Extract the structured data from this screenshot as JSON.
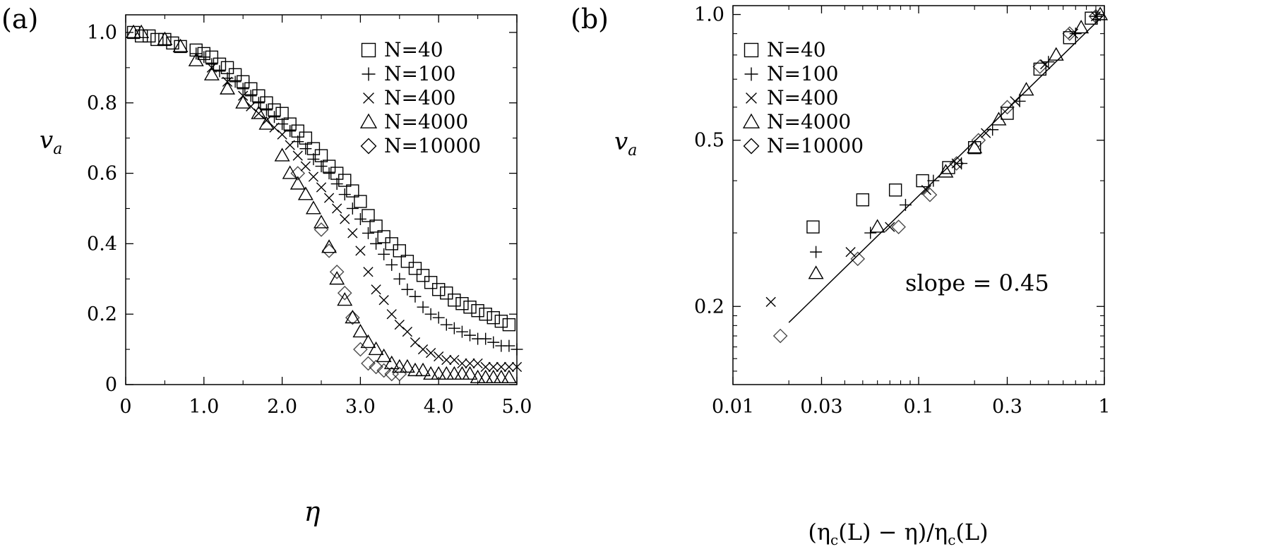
{
  "chart_data": [
    {
      "panel_label": "(a)",
      "type": "scatter",
      "xlabel": "η",
      "ylabel_main": "v",
      "ylabel_sub": "a",
      "xscale": "linear",
      "yscale": "linear",
      "xlim": [
        0,
        5.0
      ],
      "ylim": [
        0,
        1.05
      ],
      "x_ticks": [
        0,
        1.0,
        2.0,
        3.0,
        4.0,
        5.0
      ],
      "x_tick_labels": [
        "0",
        "1.0",
        "2.0",
        "3.0",
        "4.0",
        "5.0"
      ],
      "y_ticks": [
        0,
        0.2,
        0.4,
        0.6,
        0.8,
        1.0
      ],
      "y_tick_labels": [
        "0",
        "0.2",
        "0.4",
        "0.6",
        "0.8",
        "1.0"
      ],
      "grid": false,
      "legend_position": "top-right",
      "series": [
        {
          "name": "N=40",
          "marker": "square",
          "x": [
            0.1,
            0.2,
            0.3,
            0.4,
            0.5,
            0.6,
            0.7,
            0.9,
            1.0,
            1.1,
            1.2,
            1.3,
            1.4,
            1.5,
            1.6,
            1.7,
            1.8,
            1.9,
            2.0,
            2.1,
            2.2,
            2.3,
            2.4,
            2.5,
            2.6,
            2.7,
            2.8,
            2.9,
            3.0,
            3.1,
            3.2,
            3.3,
            3.4,
            3.5,
            3.6,
            3.7,
            3.8,
            3.9,
            4.0,
            4.1,
            4.2,
            4.3,
            4.4,
            4.5,
            4.6,
            4.7,
            4.8,
            4.9
          ],
          "y": [
            1.0,
            0.99,
            0.99,
            0.98,
            0.98,
            0.97,
            0.96,
            0.95,
            0.94,
            0.93,
            0.91,
            0.9,
            0.88,
            0.86,
            0.84,
            0.82,
            0.8,
            0.78,
            0.77,
            0.74,
            0.72,
            0.7,
            0.67,
            0.65,
            0.62,
            0.6,
            0.58,
            0.55,
            0.52,
            0.48,
            0.45,
            0.42,
            0.4,
            0.38,
            0.35,
            0.33,
            0.31,
            0.29,
            0.27,
            0.26,
            0.24,
            0.23,
            0.22,
            0.21,
            0.2,
            0.19,
            0.18,
            0.17
          ]
        },
        {
          "name": "N=100",
          "marker": "plus",
          "x": [
            0.9,
            1.0,
            1.1,
            1.2,
            1.3,
            1.4,
            1.5,
            1.6,
            1.7,
            1.8,
            1.9,
            2.0,
            2.1,
            2.2,
            2.3,
            2.4,
            2.5,
            2.6,
            2.7,
            2.8,
            2.9,
            3.0,
            3.1,
            3.2,
            3.3,
            3.4,
            3.5,
            3.6,
            3.7,
            3.8,
            3.9,
            4.0,
            4.1,
            4.2,
            4.3,
            4.4,
            4.5,
            4.6,
            4.7,
            4.8,
            4.9,
            5.0
          ],
          "y": [
            0.94,
            0.93,
            0.91,
            0.89,
            0.87,
            0.86,
            0.84,
            0.82,
            0.8,
            0.78,
            0.76,
            0.74,
            0.72,
            0.69,
            0.67,
            0.64,
            0.62,
            0.6,
            0.57,
            0.54,
            0.5,
            0.47,
            0.43,
            0.4,
            0.37,
            0.34,
            0.3,
            0.27,
            0.25,
            0.22,
            0.2,
            0.19,
            0.17,
            0.16,
            0.15,
            0.14,
            0.13,
            0.13,
            0.12,
            0.11,
            0.11,
            0.1
          ]
        },
        {
          "name": "N=400",
          "marker": "cross",
          "x": [
            1.1,
            1.3,
            1.5,
            1.6,
            1.7,
            1.8,
            1.9,
            2.0,
            2.1,
            2.2,
            2.3,
            2.4,
            2.5,
            2.6,
            2.7,
            2.8,
            2.9,
            3.0,
            3.1,
            3.2,
            3.3,
            3.4,
            3.5,
            3.6,
            3.7,
            3.8,
            3.9,
            4.0,
            4.1,
            4.2,
            4.3,
            4.4,
            4.5,
            4.6,
            4.7,
            4.8,
            4.9,
            5.0
          ],
          "y": [
            0.9,
            0.86,
            0.82,
            0.79,
            0.77,
            0.75,
            0.73,
            0.71,
            0.68,
            0.65,
            0.62,
            0.59,
            0.56,
            0.53,
            0.5,
            0.47,
            0.43,
            0.38,
            0.32,
            0.27,
            0.24,
            0.2,
            0.17,
            0.15,
            0.12,
            0.1,
            0.09,
            0.08,
            0.07,
            0.07,
            0.06,
            0.06,
            0.06,
            0.05,
            0.05,
            0.05,
            0.05,
            0.05
          ]
        },
        {
          "name": "N=4000",
          "marker": "triangle",
          "x": [
            0.1,
            0.2,
            0.5,
            0.7,
            0.9,
            1.1,
            1.3,
            1.5,
            1.7,
            1.8,
            2.0,
            2.1,
            2.2,
            2.3,
            2.4,
            2.5,
            2.6,
            2.7,
            2.8,
            2.9,
            3.0,
            3.1,
            3.2,
            3.3,
            3.4,
            3.5,
            3.6,
            3.7,
            3.8,
            3.9,
            4.0,
            4.1,
            4.2,
            4.3,
            4.4,
            4.5,
            4.6,
            4.7,
            4.8,
            4.9
          ],
          "y": [
            1.0,
            1.0,
            0.98,
            0.96,
            0.92,
            0.88,
            0.84,
            0.8,
            0.77,
            0.74,
            0.65,
            0.6,
            0.57,
            0.54,
            0.5,
            0.46,
            0.39,
            0.3,
            0.24,
            0.19,
            0.15,
            0.12,
            0.1,
            0.08,
            0.06,
            0.05,
            0.05,
            0.04,
            0.04,
            0.03,
            0.03,
            0.03,
            0.03,
            0.03,
            0.03,
            0.02,
            0.02,
            0.02,
            0.02,
            0.02
          ]
        },
        {
          "name": "N=10000",
          "marker": "diamond",
          "x": [
            2.2,
            2.5,
            2.6,
            2.7,
            2.8,
            2.9,
            3.0,
            3.1,
            3.2,
            3.3,
            3.4,
            3.5
          ],
          "y": [
            0.6,
            0.44,
            0.38,
            0.32,
            0.26,
            0.19,
            0.1,
            0.06,
            0.05,
            0.04,
            0.03,
            0.03
          ]
        }
      ]
    },
    {
      "panel_label": "(b)",
      "type": "scatter",
      "xlabel": "(η_c(L) − η)/η_c(L)",
      "xlabel_parts": [
        "(η",
        "c",
        "(L) − η)/η",
        "c",
        "(L)"
      ],
      "ylabel_main": "v",
      "ylabel_sub": "a",
      "xscale": "log",
      "yscale": "log",
      "xlim": [
        0.01,
        1
      ],
      "ylim": [
        0.13,
        1.05
      ],
      "x_ticks": [
        0.01,
        0.03,
        0.1,
        0.3,
        1
      ],
      "x_tick_labels": [
        "0.01",
        "0.03",
        "0.1",
        "0.3",
        "1"
      ],
      "y_ticks": [
        0.2,
        0.5,
        1.0
      ],
      "y_tick_labels": [
        "0.2",
        "0.5",
        "1.0"
      ],
      "grid": false,
      "legend_position": "top-left",
      "annotation": "slope = 0.45",
      "fit_line": {
        "x": [
          0.02,
          1.0
        ],
        "y": [
          0.183,
          1.0
        ],
        "slope": 0.45
      },
      "series": [
        {
          "name": "N=40",
          "marker": "square",
          "x": [
            0.027,
            0.05,
            0.075,
            0.105,
            0.145,
            0.2,
            0.3,
            0.45,
            0.65,
            0.85
          ],
          "y": [
            0.31,
            0.36,
            0.38,
            0.4,
            0.43,
            0.48,
            0.58,
            0.74,
            0.88,
            0.98
          ]
        },
        {
          "name": "N=100",
          "marker": "plus",
          "x": [
            0.028,
            0.055,
            0.085,
            0.12,
            0.17,
            0.25,
            0.35,
            0.5,
            0.7,
            0.9
          ],
          "y": [
            0.27,
            0.3,
            0.35,
            0.4,
            0.44,
            0.53,
            0.62,
            0.77,
            0.9,
            0.99
          ]
        },
        {
          "name": "N=400",
          "marker": "cross",
          "x": [
            0.016,
            0.043,
            0.07,
            0.11,
            0.16,
            0.23,
            0.33,
            0.48,
            0.68,
            0.9
          ],
          "y": [
            0.205,
            0.27,
            0.31,
            0.38,
            0.44,
            0.52,
            0.62,
            0.76,
            0.9,
            0.99
          ]
        },
        {
          "name": "N=4000",
          "marker": "triangle",
          "x": [
            0.028,
            0.06,
            0.14,
            0.2,
            0.27,
            0.38,
            0.55,
            0.75,
            0.95
          ],
          "y": [
            0.24,
            0.31,
            0.42,
            0.48,
            0.56,
            0.66,
            0.8,
            0.93,
            1.0
          ]
        },
        {
          "name": "N=10000",
          "marker": "diamond",
          "x": [
            0.018,
            0.047,
            0.078,
            0.115,
            0.16,
            0.21,
            0.3,
            0.45,
            0.65,
            0.9
          ],
          "y": [
            0.17,
            0.26,
            0.31,
            0.37,
            0.44,
            0.5,
            0.6,
            0.75,
            0.9,
            0.99
          ]
        }
      ]
    }
  ]
}
